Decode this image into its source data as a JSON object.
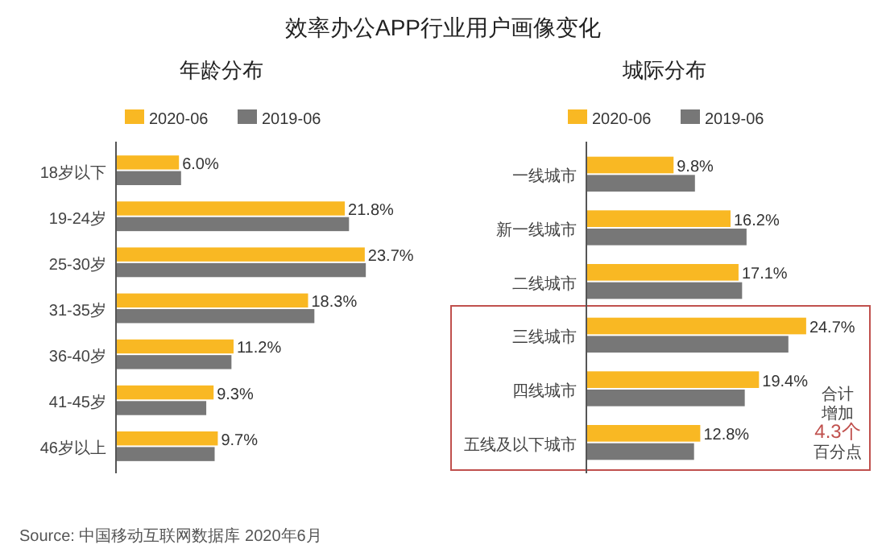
{
  "chart_data": [
    {
      "type": "bar",
      "orientation": "horizontal",
      "title": "效率办公APP行业用户画像变化",
      "subtitle": "年龄分布",
      "legend": "top",
      "categories": [
        "18岁以下",
        "19-24岁",
        "25-30岁",
        "31-35岁",
        "36-40岁",
        "41-45岁",
        "46岁以上"
      ],
      "series": [
        {
          "name": "2020-06",
          "color": "#f9b823",
          "values": [
            6.0,
            21.8,
            23.7,
            18.3,
            11.2,
            9.3,
            9.7
          ],
          "value_labels": [
            "6.0%",
            "21.8%",
            "23.7%",
            "18.3%",
            "11.2%",
            "9.3%",
            "9.7%"
          ]
        },
        {
          "name": "2019-06",
          "color": "#777777",
          "values": [
            6.2,
            22.2,
            23.8,
            18.9,
            11.0,
            8.6,
            9.4
          ]
        }
      ],
      "annotations": [
        "Source: 中国移动互联网数据库 2020年6月"
      ]
    },
    {
      "type": "bar",
      "orientation": "horizontal",
      "title": "城际分布",
      "legend": "top",
      "categories": [
        "一线城市",
        "新一线城市",
        "二线城市",
        "三线城市",
        "四线城市",
        "五线及以下城市"
      ],
      "series": [
        {
          "name": "2020-06",
          "color": "#f9b823",
          "values": [
            9.8,
            16.2,
            17.1,
            24.7,
            19.4,
            12.8
          ],
          "value_labels": [
            "9.8%",
            "16.2%",
            "17.1%",
            "24.7%",
            "19.4%",
            "12.8%"
          ]
        },
        {
          "name": "2019-06",
          "color": "#777777",
          "values": [
            12.2,
            18.0,
            17.5,
            22.7,
            17.8,
            12.1
          ]
        }
      ],
      "annotations": [
        "合计",
        "增加",
        "4.3个",
        "百分点"
      ]
    }
  ]
}
